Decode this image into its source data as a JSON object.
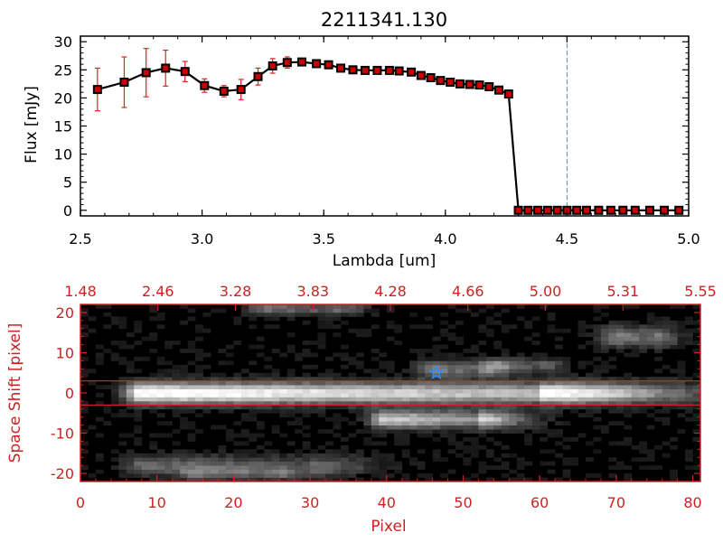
{
  "colors": {
    "axis_top": "#000000",
    "axis_bottom": "#cc2222",
    "data_marker": "#cc0000",
    "error_bar": "#dd2222",
    "vline": "#2aa3b8",
    "star": "#2b8cff",
    "background": "#ffffff"
  },
  "chart_data": [
    {
      "type": "line",
      "title": "2211341.130",
      "xlabel": "Lambda [um]",
      "ylabel": "Flux [mJy]",
      "xlim": [
        2.5,
        5.0
      ],
      "ylim": [
        -1,
        31
      ],
      "xticks": [
        "2.5",
        "3.0",
        "3.5",
        "4.0",
        "4.5",
        "5.0"
      ],
      "yticks": [
        "0",
        "5",
        "10",
        "15",
        "20",
        "25",
        "30"
      ],
      "vline_x": 4.5,
      "series": [
        {
          "x": [
            2.57,
            2.68,
            2.77,
            2.85,
            2.93,
            3.01,
            3.09,
            3.16,
            3.23,
            3.29,
            3.35,
            3.41,
            3.47,
            3.52,
            3.57,
            3.62,
            3.67,
            3.72,
            3.77,
            3.81,
            3.86,
            3.9,
            3.94,
            3.98,
            4.02,
            4.06,
            4.1,
            4.14,
            4.18,
            4.22,
            4.26,
            4.3,
            4.34,
            4.38,
            4.42,
            4.46,
            4.5,
            4.54,
            4.58,
            4.63,
            4.68,
            4.73,
            4.78,
            4.84,
            4.9,
            4.96
          ],
          "y": [
            21.5,
            22.8,
            24.5,
            25.3,
            24.7,
            22.2,
            21.2,
            21.5,
            23.8,
            25.7,
            26.3,
            26.4,
            26.1,
            25.9,
            25.3,
            25.0,
            24.9,
            24.9,
            24.9,
            24.8,
            24.6,
            24.0,
            23.6,
            23.1,
            22.8,
            22.5,
            22.4,
            22.3,
            22.0,
            21.4,
            20.7,
            0,
            0,
            0,
            0,
            0,
            0,
            0,
            0,
            0,
            0,
            0,
            0,
            0,
            0,
            0
          ],
          "yerr": [
            3.8,
            4.5,
            4.3,
            3.2,
            1.8,
            1.2,
            1.0,
            1.8,
            1.5,
            1.3,
            1.0,
            0.6,
            0.4,
            0.3,
            0.3,
            0.3,
            0.3,
            0.3,
            0.3,
            0.3,
            0.3,
            0.3,
            0.3,
            0.3,
            0.3,
            0.3,
            0.3,
            0.3,
            0.3,
            0.3,
            0.3,
            0,
            0,
            0,
            0,
            0,
            0,
            0,
            0,
            0,
            0,
            0,
            0,
            0,
            0,
            0
          ]
        }
      ]
    },
    {
      "type": "heatmap",
      "xlabel": "Pixel",
      "ylabel": "Space Shift [pixel]",
      "xlim": [
        0,
        81
      ],
      "ylim": [
        -22,
        22
      ],
      "xticks": [
        "0",
        "10",
        "20",
        "30",
        "40",
        "50",
        "60",
        "70",
        "80"
      ],
      "yticks": [
        "-20",
        "-10",
        "0",
        "10",
        "20"
      ],
      "top_axis_labels": [
        "1.48",
        "2.46",
        "3.28",
        "3.83",
        "4.28",
        "4.66",
        "5.00",
        "5.31",
        "5.55"
      ],
      "band_lines_y": [
        3,
        -3
      ],
      "star_marker": {
        "x": 46.5,
        "y": 5
      },
      "sources": [
        {
          "x0": 8,
          "x1": 60,
          "y": 0,
          "peak": 1.0,
          "width": 2.6,
          "decay": 18
        },
        {
          "x0": 40,
          "x1": 52,
          "y": -6.5,
          "peak": 0.75,
          "width": 2.2,
          "decay": 6
        },
        {
          "x0": 46,
          "x1": 52,
          "y": 6,
          "peak": 0.45,
          "width": 2.0,
          "decay": 4
        },
        {
          "x0": 55,
          "x1": 60,
          "y": 7,
          "peak": 0.35,
          "width": 1.6,
          "decay": 3
        },
        {
          "x0": 70,
          "x1": 75,
          "y": 14,
          "peak": 0.45,
          "width": 2.5,
          "decay": 3
        },
        {
          "x0": 24,
          "x1": 33,
          "y": 21,
          "peak": 0.4,
          "width": 1.5,
          "decay": 4
        },
        {
          "x0": 8,
          "x1": 30,
          "y": -18,
          "peak": 0.35,
          "width": 2.5,
          "decay": 8
        },
        {
          "x0": 15,
          "x1": 25,
          "y": -20,
          "peak": 0.3,
          "width": 1.6,
          "decay": 5
        }
      ]
    }
  ]
}
